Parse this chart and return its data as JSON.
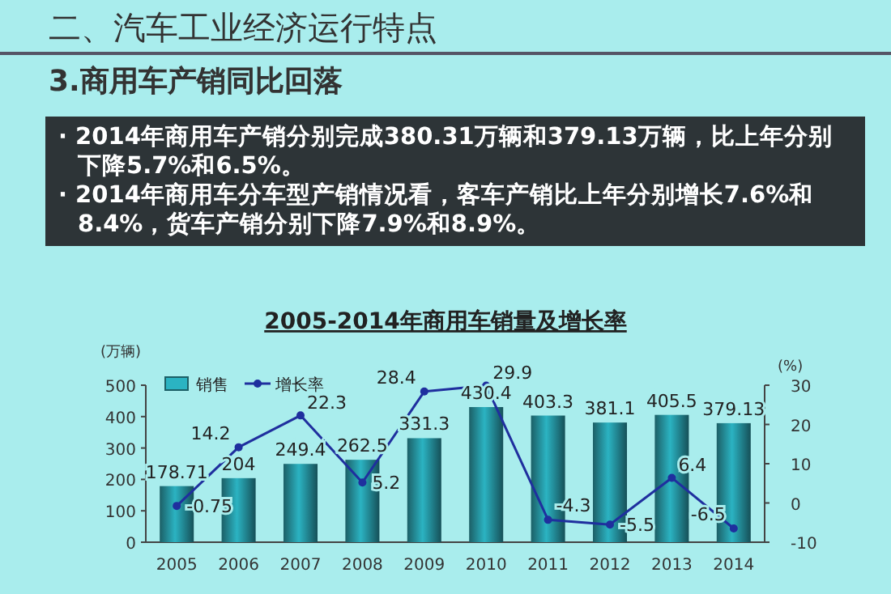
{
  "chart_data": {
    "type": "bar",
    "title": "2005-2014年商用车销量及增长率",
    "annotations": [
      "二、汽车工业经济运行特点",
      "3.商用车产销同比回落",
      "· 2014年商用车产销分别完成380.31万辆和379.13万辆，比上年分别下降5.7%和6.5%。",
      "· 2014年商用车分车型产销情况看，客车产销比上年分别增长7.6%和8.4%，货车产销分别下降7.9%和8.9%。"
    ],
    "categories": [
      "2005",
      "2006",
      "2007",
      "2008",
      "2009",
      "2010",
      "2011",
      "2012",
      "2013",
      "2014"
    ],
    "series": [
      {
        "name": "销售",
        "color": "#2bb3c2",
        "values": [
          178.71,
          204,
          249.4,
          262.5,
          331.3,
          430.4,
          403.3,
          381.1,
          405.5,
          379.13
        ]
      },
      {
        "name": "增长率",
        "type": "line",
        "axis": "y2",
        "color": "#1f2f9e",
        "values": [
          -0.75,
          14.2,
          22.3,
          5.2,
          28.4,
          29.9,
          -4.3,
          -5.5,
          6.4,
          -6.5
        ]
      }
    ],
    "ylabel": "(万辆)",
    "y2label": "(%)",
    "ylim": [
      0,
      500
    ],
    "yticks": [
      0,
      100,
      200,
      300,
      400,
      500
    ],
    "y2lim": [
      -10,
      30
    ],
    "y2ticks": [
      -10,
      0,
      10,
      20,
      30
    ],
    "data_labels": true,
    "legend": "top left",
    "marker": "circle",
    "grid": false
  }
}
